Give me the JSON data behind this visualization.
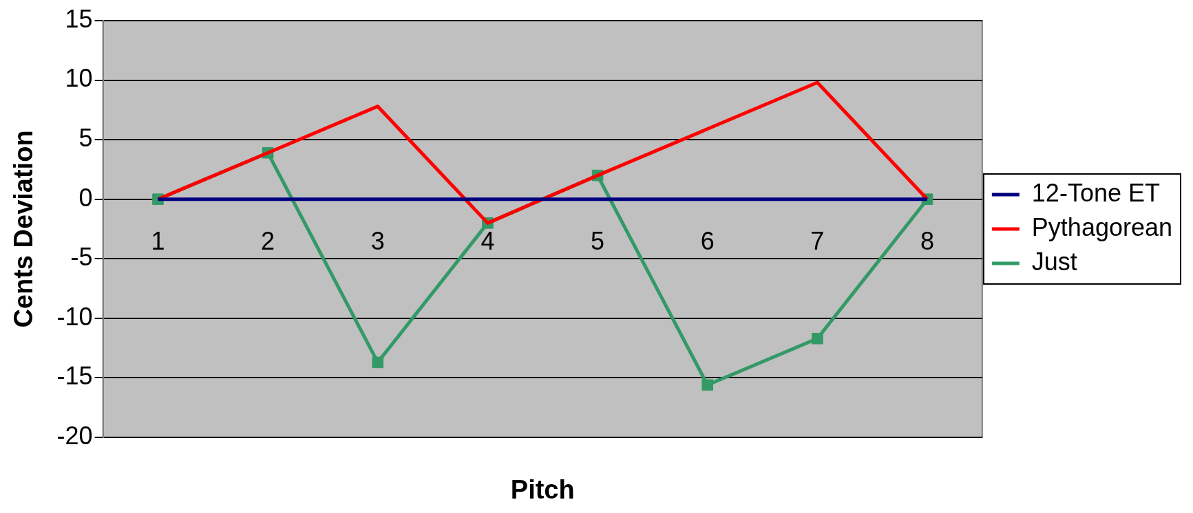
{
  "chart_data": {
    "type": "line",
    "xlabel": "Pitch",
    "ylabel": "Cents Deviation",
    "categories": [
      "1",
      "2",
      "3",
      "4",
      "5",
      "6",
      "7",
      "8"
    ],
    "series": [
      {
        "name": "12-Tone ET",
        "color": "#000080",
        "values": [
          0,
          0,
          0,
          0,
          0,
          0,
          0,
          0
        ],
        "marker": "none"
      },
      {
        "name": "Pythagorean",
        "color": "#ff0000",
        "values": [
          0,
          3.9,
          7.8,
          -2,
          2,
          5.9,
          9.8,
          0
        ],
        "marker": "none"
      },
      {
        "name": "Just",
        "color": "#339966",
        "values": [
          0,
          3.9,
          -13.7,
          -2,
          2,
          -15.6,
          -11.7,
          0
        ]
      }
    ],
    "marker": "square",
    "ylim": [
      -20,
      15
    ],
    "yticks": [
      -20,
      -15,
      -10,
      -5,
      0,
      5,
      10,
      15
    ],
    "grid": "y",
    "legend": "right",
    "line_style": "solid"
  }
}
